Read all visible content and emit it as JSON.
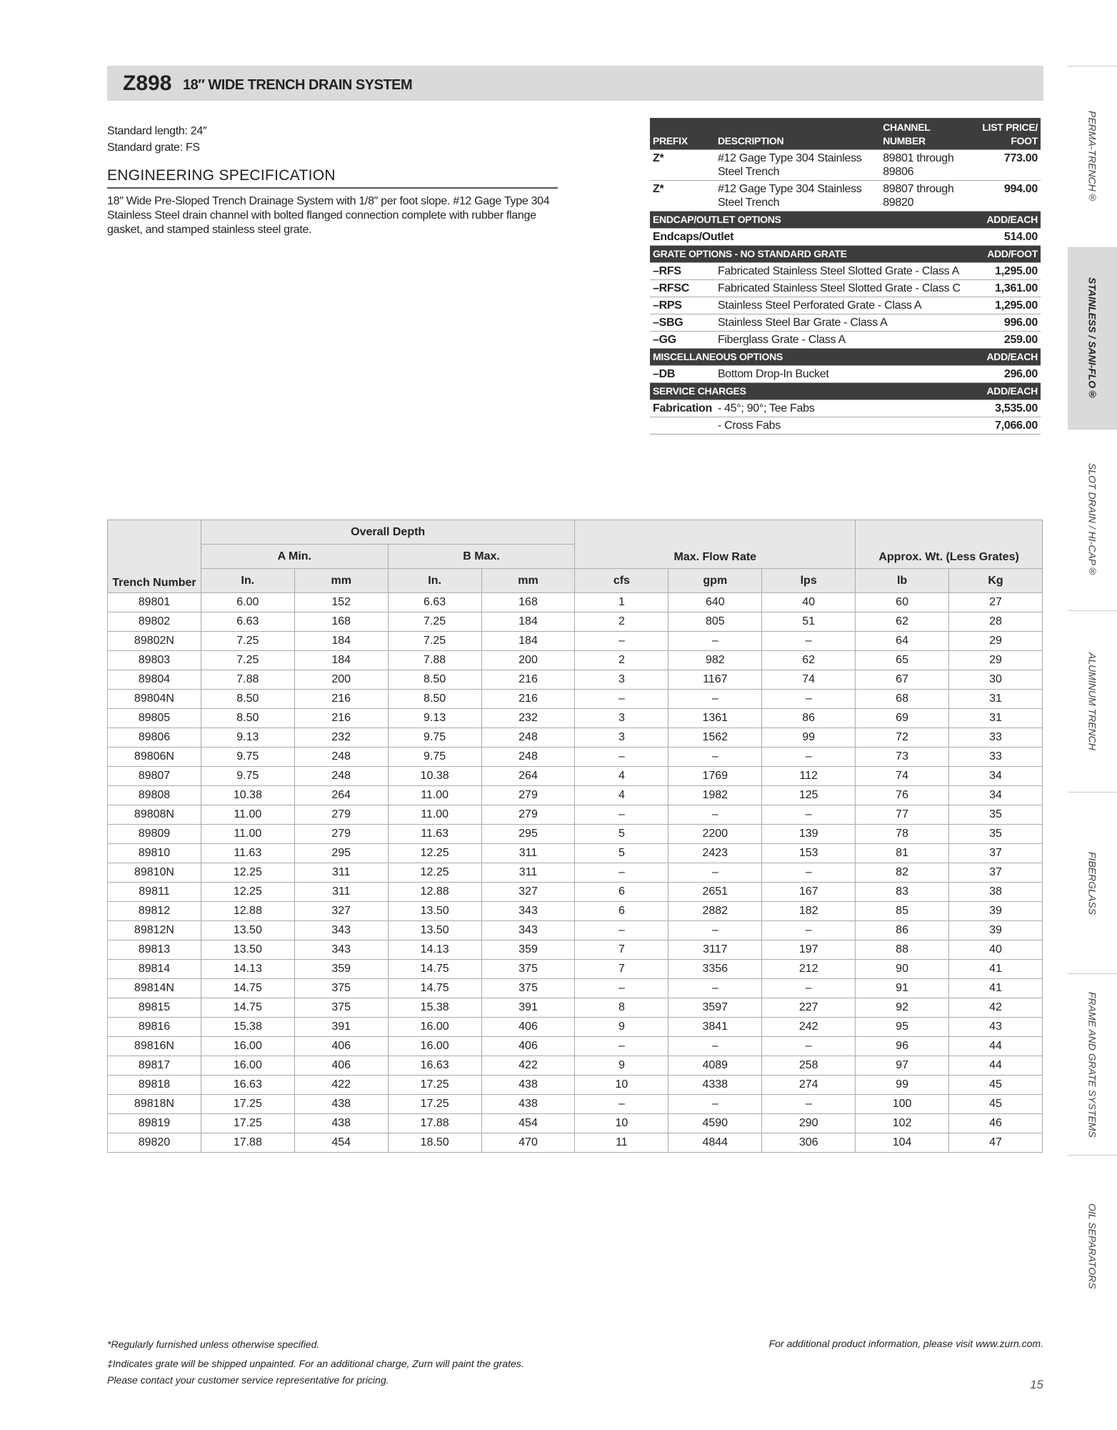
{
  "header": {
    "code": "Z898",
    "title": "18″ WIDE TRENCH DRAIN SYSTEM"
  },
  "intro": {
    "standard_length": "Standard length: 24″",
    "standard_grate": "Standard grate: FS",
    "section_title": "ENGINEERING SPECIFICATION",
    "description": "18″ Wide Pre-Sloped Trench Drainage System with 1/8″ per foot slope. #12 Gage Type 304 Stainless Steel drain channel with bolted flanged connection complete with rubber flange gasket, and stamped stainless steel grate."
  },
  "price_table": {
    "columns": [
      "PREFIX",
      "DESCRIPTION",
      "CHANNEL NUMBER",
      "LIST PRICE/ FOOT"
    ],
    "channels": [
      {
        "prefix": "Z*",
        "description": "#12 Gage Type 304 Stainless Steel Trench",
        "channel": "89801 through 89806",
        "price": "773.00"
      },
      {
        "prefix": "Z*",
        "description": "#12 Gage Type 304 Stainless Steel Trench",
        "channel": "89807 through 89820",
        "price": "994.00"
      }
    ],
    "sections": [
      {
        "title": "ENDCAP/OUTLET OPTIONS",
        "unit": "ADD/EACH",
        "rows": [
          {
            "label": "Endcaps/Outlet",
            "price": "514.00"
          }
        ]
      },
      {
        "title": "GRATE OPTIONS - NO STANDARD GRATE",
        "unit": "ADD/FOOT",
        "rows": [
          {
            "prefix": "–RFS",
            "description": "Fabricated Stainless Steel Slotted Grate - Class A",
            "price": "1,295.00"
          },
          {
            "prefix": "–RFSC",
            "description": "Fabricated Stainless Steel Slotted Grate - Class C",
            "price": "1,361.00"
          },
          {
            "prefix": "–RPS",
            "description": "Stainless Steel Perforated Grate - Class A",
            "price": "1,295.00"
          },
          {
            "prefix": "–SBG",
            "description": "Stainless Steel Bar Grate - Class A",
            "price": "996.00"
          },
          {
            "prefix": "–GG",
            "description": "Fiberglass Grate - Class A",
            "price": "259.00"
          }
        ]
      },
      {
        "title": "MISCELLANEOUS OPTIONS",
        "unit": "ADD/EACH",
        "rows": [
          {
            "prefix": "–DB",
            "description": "Bottom Drop-In Bucket",
            "price": "296.00"
          }
        ]
      },
      {
        "title": "SERVICE CHARGES",
        "unit": "ADD/EACH",
        "rows": [
          {
            "prefix": "Fabrication",
            "description": "- 45°; 90°; Tee Fabs",
            "price": "3,535.00"
          },
          {
            "description": "- Cross Fabs",
            "price": "7,066.00"
          }
        ]
      }
    ]
  },
  "dimensions_table": {
    "trench_number": "Trench Number",
    "overall_depth": "Overall Depth",
    "a_min": "A Min.",
    "b_max": "B Max.",
    "max_flow": "Max. Flow Rate",
    "weight": "Approx. Wt. (Less Grates)",
    "units": [
      "In.",
      "mm",
      "In.",
      "mm",
      "cfs",
      "gpm",
      "lps",
      "lb",
      "Kg"
    ],
    "rows": [
      [
        "89801",
        "6.00",
        "152",
        "6.63",
        "168",
        "1",
        "640",
        "40",
        "60",
        "27"
      ],
      [
        "89802",
        "6.63",
        "168",
        "7.25",
        "184",
        "2",
        "805",
        "51",
        "62",
        "28"
      ],
      [
        "89802N",
        "7.25",
        "184",
        "7.25",
        "184",
        "–",
        "–",
        "–",
        "64",
        "29"
      ],
      [
        "89803",
        "7.25",
        "184",
        "7.88",
        "200",
        "2",
        "982",
        "62",
        "65",
        "29"
      ],
      [
        "89804",
        "7.88",
        "200",
        "8.50",
        "216",
        "3",
        "1167",
        "74",
        "67",
        "30"
      ],
      [
        "89804N",
        "8.50",
        "216",
        "8.50",
        "216",
        "–",
        "–",
        "–",
        "68",
        "31"
      ],
      [
        "89805",
        "8.50",
        "216",
        "9.13",
        "232",
        "3",
        "1361",
        "86",
        "69",
        "31"
      ],
      [
        "89806",
        "9.13",
        "232",
        "9.75",
        "248",
        "3",
        "1562",
        "99",
        "72",
        "33"
      ],
      [
        "89806N",
        "9.75",
        "248",
        "9.75",
        "248",
        "–",
        "–",
        "–",
        "73",
        "33"
      ],
      [
        "89807",
        "9.75",
        "248",
        "10.38",
        "264",
        "4",
        "1769",
        "112",
        "74",
        "34"
      ],
      [
        "89808",
        "10.38",
        "264",
        "11.00",
        "279",
        "4",
        "1982",
        "125",
        "76",
        "34"
      ],
      [
        "89808N",
        "11.00",
        "279",
        "11.00",
        "279",
        "–",
        "–",
        "–",
        "77",
        "35"
      ],
      [
        "89809",
        "11.00",
        "279",
        "11.63",
        "295",
        "5",
        "2200",
        "139",
        "78",
        "35"
      ],
      [
        "89810",
        "11.63",
        "295",
        "12.25",
        "311",
        "5",
        "2423",
        "153",
        "81",
        "37"
      ],
      [
        "89810N",
        "12.25",
        "311",
        "12.25",
        "311",
        "–",
        "–",
        "–",
        "82",
        "37"
      ],
      [
        "89811",
        "12.25",
        "311",
        "12.88",
        "327",
        "6",
        "2651",
        "167",
        "83",
        "38"
      ],
      [
        "89812",
        "12.88",
        "327",
        "13.50",
        "343",
        "6",
        "2882",
        "182",
        "85",
        "39"
      ],
      [
        "89812N",
        "13.50",
        "343",
        "13.50",
        "343",
        "–",
        "–",
        "–",
        "86",
        "39"
      ],
      [
        "89813",
        "13.50",
        "343",
        "14.13",
        "359",
        "7",
        "3117",
        "197",
        "88",
        "40"
      ],
      [
        "89814",
        "14.13",
        "359",
        "14.75",
        "375",
        "7",
        "3356",
        "212",
        "90",
        "41"
      ],
      [
        "89814N",
        "14.75",
        "375",
        "14.75",
        "375",
        "–",
        "–",
        "–",
        "91",
        "41"
      ],
      [
        "89815",
        "14.75",
        "375",
        "15.38",
        "391",
        "8",
        "3597",
        "227",
        "92",
        "42"
      ],
      [
        "89816",
        "15.38",
        "391",
        "16.00",
        "406",
        "9",
        "3841",
        "242",
        "95",
        "43"
      ],
      [
        "89816N",
        "16.00",
        "406",
        "16.00",
        "406",
        "–",
        "–",
        "–",
        "96",
        "44"
      ],
      [
        "89817",
        "16.00",
        "406",
        "16.63",
        "422",
        "9",
        "4089",
        "258",
        "97",
        "44"
      ],
      [
        "89818",
        "16.63",
        "422",
        "17.25",
        "438",
        "10",
        "4338",
        "274",
        "99",
        "45"
      ],
      [
        "89818N",
        "17.25",
        "438",
        "17.25",
        "438",
        "–",
        "–",
        "–",
        "100",
        "45"
      ],
      [
        "89819",
        "17.25",
        "438",
        "17.88",
        "454",
        "10",
        "4590",
        "290",
        "102",
        "46"
      ],
      [
        "89820",
        "17.88",
        "454",
        "18.50",
        "470",
        "11",
        "4844",
        "306",
        "104",
        "47"
      ]
    ]
  },
  "side_tabs": [
    "PERMA-TRENCH®",
    "STAINLESS / SANI-FLO®",
    "SLOT DRAIN / HI-CAP®",
    "ALUMINUM TRENCH",
    "FIBERGLASS",
    "FRAME AND GRATE SYSTEMS",
    "OIL SEPARATORS"
  ],
  "footer": {
    "notes": [
      "*Regularly furnished unless otherwise specified.",
      "‡Indicates grate will be shipped unpainted. For an additional charge, Zurn will paint the grates.",
      "Please contact your customer service representative for pricing."
    ],
    "website": "For additional product information, please visit www.zurn.com.",
    "page_number": "15"
  }
}
